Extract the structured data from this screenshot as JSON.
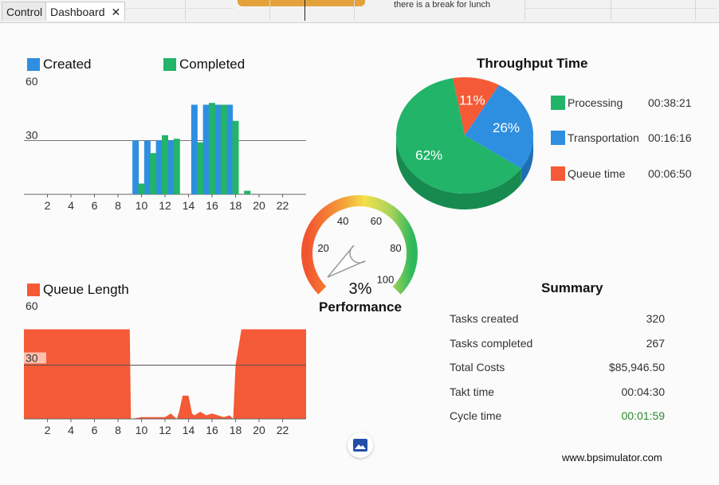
{
  "tabs": [
    {
      "label": "Control"
    },
    {
      "label": "Dashboard",
      "close": "✕"
    }
  ],
  "note_text": "there is a break for lunch",
  "colors": {
    "created": "#2e8fe0",
    "completed": "#22b469",
    "queue": "#f55a36",
    "processing": "#22b469",
    "transportation": "#2e8fe0",
    "queue_time": "#f55a36",
    "cycle_time_text": "#2a8a2a"
  },
  "tasks_chart": {
    "legend": [
      "Created",
      "Completed"
    ]
  },
  "throughput": {
    "title": "Throughput Time",
    "legend": [
      {
        "label": "Processing",
        "time": "00:38:21"
      },
      {
        "label": "Transportation",
        "time": "00:16:16"
      },
      {
        "label": "Queue time",
        "time": "00:06:50"
      }
    ]
  },
  "queue_chart": {
    "legend": "Queue Length"
  },
  "gauge": {
    "title": "Performance",
    "value_text": "3%",
    "value": 3,
    "ticks": [
      "20",
      "40",
      "60",
      "80",
      "100"
    ]
  },
  "summary": {
    "title": "Summary",
    "rows": [
      {
        "label": "Tasks created",
        "value": "320"
      },
      {
        "label": "Tasks completed",
        "value": "267"
      },
      {
        "label": "Total Costs",
        "value": "$85,946.50"
      },
      {
        "label": "Takt time",
        "value": "00:04:30"
      },
      {
        "label": "Cycle time",
        "value": "00:01:59"
      }
    ]
  },
  "image_button_icon": "image-icon",
  "website": "www.bpsimulator.com",
  "chart_data": [
    {
      "type": "bar",
      "title": "",
      "series": [
        {
          "name": "Created",
          "x": [
            9.5,
            10.5,
            11.5,
            12.5,
            14.5,
            15.5,
            16.5,
            17.5
          ],
          "values": [
            30,
            30,
            30,
            30,
            50,
            50,
            50,
            50
          ]
        },
        {
          "name": "Completed",
          "x": [
            10,
            11,
            12,
            13,
            15,
            16,
            17,
            18,
            19
          ],
          "values": [
            6,
            23,
            33,
            31,
            29,
            51,
            50,
            41,
            2
          ]
        }
      ],
      "xticks": [
        "2",
        "4",
        "6",
        "8",
        "10",
        "12",
        "14",
        "16",
        "18",
        "20",
        "22"
      ],
      "yticks": [
        "60",
        "30"
      ],
      "xlim": [
        0,
        24
      ],
      "ylim": [
        0,
        60
      ],
      "reference_line": 30
    },
    {
      "type": "pie",
      "title": "Throughput Time",
      "labels": [
        "Processing",
        "Transportation",
        "Queue time"
      ],
      "values": [
        62,
        26,
        11
      ],
      "value_labels": [
        "62%",
        "26%",
        "11%"
      ]
    },
    {
      "type": "area",
      "title": "",
      "series": [
        {
          "name": "Queue Length",
          "x": [
            0,
            9,
            9.1,
            10,
            11,
            12,
            12.5,
            13,
            13.2,
            13.5,
            14,
            14.3,
            14.5,
            15,
            15.5,
            16,
            17,
            17.5,
            17.8,
            18,
            18.5,
            19,
            24
          ],
          "values": [
            50,
            50,
            0,
            1,
            1,
            1,
            3,
            0,
            4,
            13,
            13,
            3,
            2,
            4,
            2,
            3,
            1,
            2,
            0,
            30,
            50,
            50,
            50
          ]
        }
      ],
      "xticks": [
        "2",
        "4",
        "6",
        "8",
        "10",
        "12",
        "14",
        "16",
        "18",
        "20",
        "22"
      ],
      "yticks": [
        "60",
        "30"
      ],
      "xlim": [
        0,
        24
      ],
      "ylim": [
        0,
        60
      ],
      "reference_line": 30
    }
  ]
}
